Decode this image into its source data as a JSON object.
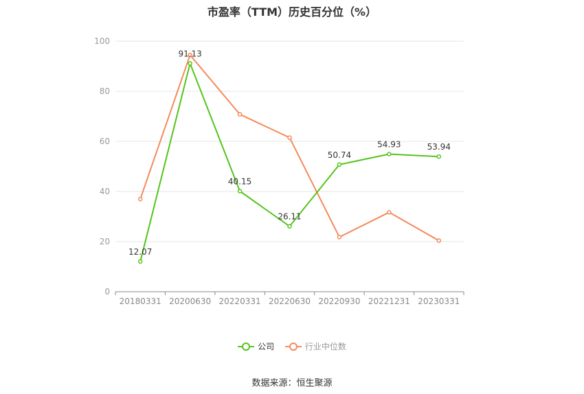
{
  "chart_data": {
    "type": "line",
    "title": "市盈率（TTM）历史百分位（%）",
    "categories": [
      "20180331",
      "20200630",
      "20220331",
      "20220630",
      "20220930",
      "20221231",
      "20230331"
    ],
    "ylim": [
      0,
      100
    ],
    "yticks": [
      0,
      20,
      40,
      60,
      80,
      100
    ],
    "grid": true,
    "legend_position": "bottom",
    "series": [
      {
        "name": "公司",
        "color": "#52c41a",
        "values": [
          12.07,
          91.13,
          40.15,
          26.11,
          50.74,
          54.93,
          53.94
        ],
        "labels": [
          "12.07",
          "91.13",
          "40.15",
          "26.11",
          "50.74",
          "54.93",
          "53.94"
        ]
      },
      {
        "name": "行业中位数",
        "color": "#f5895a",
        "values": [
          37.0,
          94.5,
          70.8,
          61.5,
          21.8,
          31.7,
          20.4
        ]
      }
    ]
  },
  "source": "数据来源：恒生聚源"
}
